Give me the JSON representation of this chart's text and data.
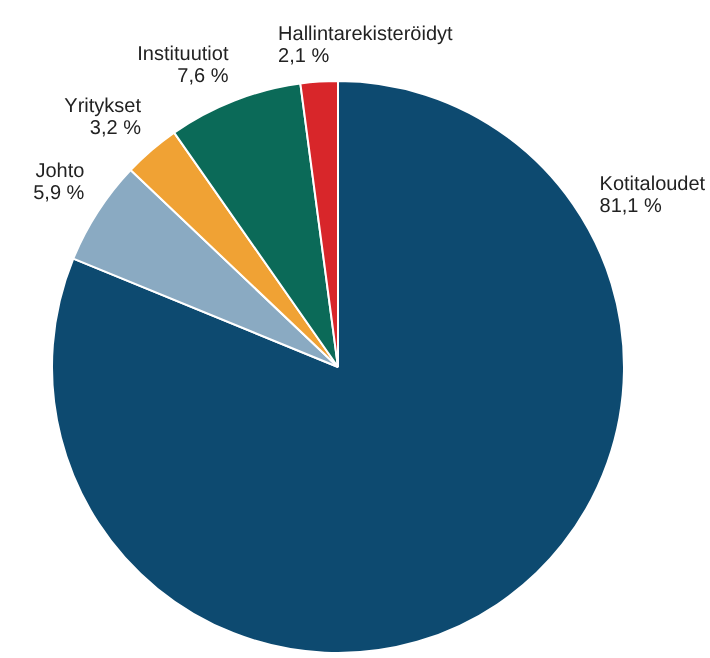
{
  "chart_data": {
    "type": "pie",
    "categories": [
      "Kotitaloudet",
      "Johto",
      "Yritykset",
      "Instituutiot",
      "Hallintarekisteröidyt"
    ],
    "values": [
      81.1,
      5.9,
      3.2,
      7.6,
      2.1
    ],
    "value_labels": [
      "81,1 %",
      "5,9 %",
      "3,2 %",
      "7,6 %",
      "2,1 %"
    ],
    "colors": [
      "#0d4a70",
      "#8aaac2",
      "#f0a234",
      "#0b6a58",
      "#d8262a"
    ],
    "legend": false
  }
}
